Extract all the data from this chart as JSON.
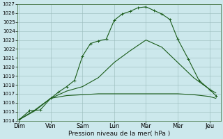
{
  "bg_color": "#cce8ec",
  "grid_color": "#99bbbb",
  "line_color": "#1a5c1a",
  "xlabel": "Pression niveau de la mer( hPa )",
  "x_labels": [
    "Dim",
    "Ven",
    "Sam",
    "Lun",
    "Mar",
    "Mer",
    "Jeu"
  ],
  "x_ticks": [
    0,
    1,
    2,
    3,
    4,
    5,
    6
  ],
  "ylim_min": 1014,
  "ylim_max": 1027,
  "yticks": [
    1014,
    1015,
    1016,
    1017,
    1018,
    1019,
    1020,
    1021,
    1022,
    1023,
    1024,
    1025,
    1026,
    1027
  ],
  "s1x": [
    0,
    0.33,
    0.67,
    1.0,
    1.25,
    1.5,
    1.75,
    2.0,
    2.25,
    2.5,
    2.75,
    3.0,
    3.25,
    3.5,
    3.75,
    4.0,
    4.25,
    4.5,
    4.75,
    5.0,
    5.33,
    5.67,
    6.0,
    6.2
  ],
  "s1y": [
    1014.1,
    1015.1,
    1015.2,
    1016.5,
    1017.2,
    1017.8,
    1018.5,
    1021.2,
    1022.6,
    1022.9,
    1023.1,
    1025.2,
    1025.9,
    1026.2,
    1026.6,
    1026.7,
    1026.3,
    1025.9,
    1025.3,
    1023.1,
    1020.9,
    1018.5,
    1017.5,
    1016.8
  ],
  "s2x": [
    0,
    0.5,
    1.0,
    1.5,
    2.0,
    2.5,
    3.0,
    3.5,
    4.0,
    4.5,
    5.0,
    5.5,
    6.0,
    6.2
  ],
  "s2y": [
    1014.1,
    1015.1,
    1016.5,
    1016.8,
    1016.9,
    1017.0,
    1017.0,
    1017.0,
    1017.0,
    1017.0,
    1017.0,
    1016.9,
    1016.7,
    1016.5
  ],
  "s3x": [
    0,
    0.5,
    1.0,
    1.5,
    2.0,
    2.5,
    3.0,
    3.5,
    4.0,
    4.5,
    5.0,
    5.5,
    6.0,
    6.2
  ],
  "s3y": [
    1014.1,
    1015.2,
    1016.5,
    1017.3,
    1017.8,
    1018.8,
    1020.5,
    1021.8,
    1023.0,
    1022.2,
    1020.5,
    1018.8,
    1017.5,
    1017.1
  ],
  "xlim_max": 6.35,
  "ylabel_fontsize": 5.0,
  "xlabel_fontsize": 6.5,
  "xtick_fontsize": 6.0
}
